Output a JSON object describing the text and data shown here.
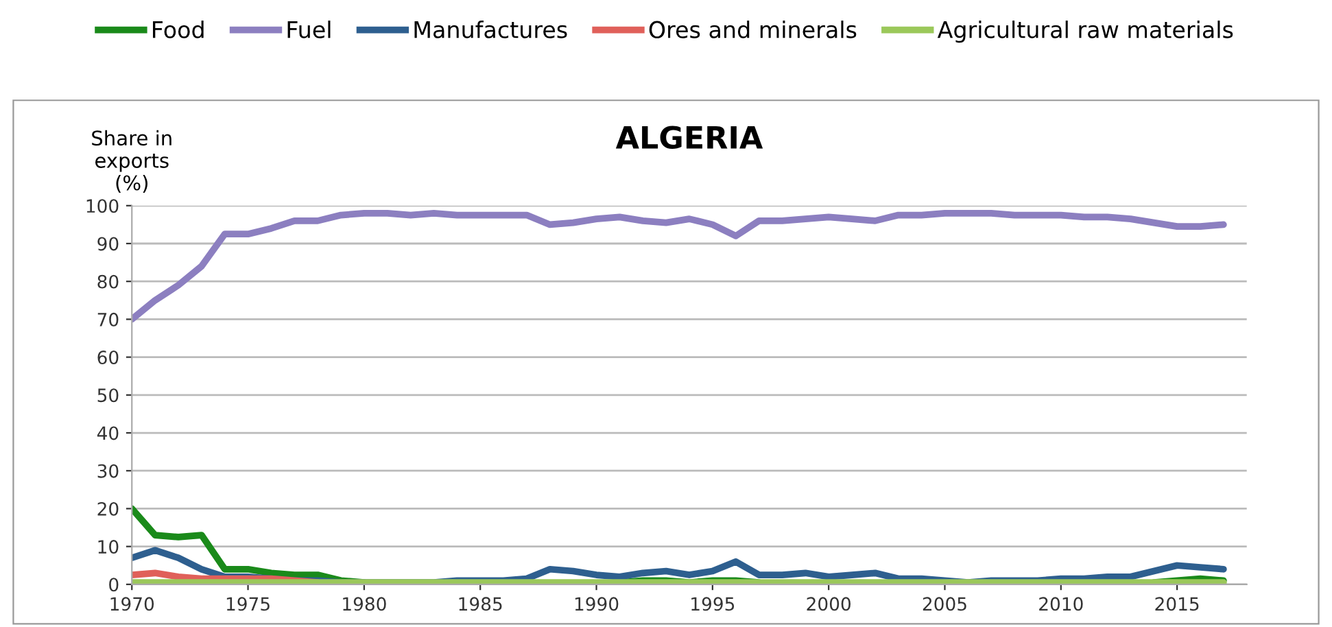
{
  "chart_data": {
    "type": "line",
    "title": "ALGERIA",
    "ylabel": "Share in\nexports\n(%)",
    "x": [
      1970,
      1971,
      1972,
      1973,
      1974,
      1975,
      1976,
      1977,
      1978,
      1979,
      1980,
      1981,
      1982,
      1983,
      1984,
      1985,
      1986,
      1987,
      1988,
      1989,
      1990,
      1991,
      1992,
      1993,
      1994,
      1995,
      1996,
      1997,
      1998,
      1999,
      2000,
      2001,
      2002,
      2003,
      2004,
      2005,
      2006,
      2007,
      2008,
      2009,
      2010,
      2011,
      2012,
      2013,
      2014,
      2015,
      2016,
      2017
    ],
    "series": [
      {
        "name": "Food",
        "color": "#1a8a1a",
        "values": [
          20,
          13,
          12.5,
          13,
          4,
          4,
          3,
          2.5,
          2.5,
          1,
          0.5,
          null,
          null,
          null,
          null,
          null,
          null,
          null,
          null,
          null,
          null,
          0.5,
          1,
          1,
          0.5,
          1,
          1,
          0.5,
          null,
          null,
          null,
          null,
          null,
          null,
          null,
          null,
          null,
          null,
          null,
          null,
          null,
          null,
          null,
          null,
          0.5,
          1,
          1.5,
          1
        ]
      },
      {
        "name": "Fuel",
        "color": "#8c7fc0",
        "values": [
          70,
          75,
          79,
          84,
          92.5,
          92.5,
          94,
          96,
          96,
          97.5,
          98,
          98,
          97.5,
          98,
          97.5,
          97.5,
          97.5,
          97.5,
          95,
          95.5,
          96.5,
          97,
          96,
          95.5,
          96.5,
          95,
          92,
          96,
          96,
          96.5,
          97,
          96.5,
          96,
          97.5,
          97.5,
          98,
          98,
          98,
          97.5,
          97.5,
          97.5,
          97,
          97,
          96.5,
          95.5,
          94.5,
          94.5,
          95
        ]
      },
      {
        "name": "Manufactures",
        "color": "#2e5f8f",
        "values": [
          7,
          9,
          7,
          4,
          2,
          2,
          1.5,
          1,
          1,
          0.5,
          0.5,
          0.5,
          0.5,
          0.5,
          1,
          1,
          1,
          1.5,
          4,
          3.5,
          2.5,
          2,
          3,
          3.5,
          2.5,
          3.5,
          6,
          2.5,
          2.5,
          3,
          2,
          2.5,
          3,
          1.5,
          1.5,
          1,
          0.5,
          1,
          1,
          1,
          1.5,
          1.5,
          2,
          2,
          3.5,
          5,
          4.5,
          4
        ]
      },
      {
        "name": "Ores and minerals",
        "color": "#e0605a",
        "values": [
          2.5,
          3,
          2,
          1.5,
          1.5,
          1.5,
          1.5,
          1,
          0.5,
          null,
          null,
          null,
          null,
          null,
          null,
          null,
          null,
          null,
          null,
          null,
          null,
          null,
          null,
          null,
          null,
          null,
          null,
          null,
          null,
          null,
          null,
          null,
          null,
          null,
          null,
          null,
          null,
          null,
          null,
          null,
          null,
          null,
          null,
          null,
          null,
          null,
          null,
          null
        ]
      },
      {
        "name": "Agricultural raw materials",
        "color": "#9bc85a",
        "values": [
          0.5,
          0.5,
          0.5,
          0.5,
          0.5,
          0.5,
          0.5,
          0.5,
          0.5,
          0.5,
          0.5,
          0.5,
          0.5,
          0.5,
          0.5,
          0.5,
          0.5,
          0.5,
          0.5,
          0.5,
          0.5,
          0.5,
          0.5,
          0.5,
          0.5,
          0.5,
          0.5,
          0.5,
          0.5,
          0.5,
          0.5,
          0.5,
          0.5,
          0.5,
          0.5,
          0.5,
          0.5,
          0.5,
          0.5,
          0.5,
          0.5,
          0.5,
          0.5,
          0.5,
          0.5,
          0.5,
          0.5,
          0.5
        ]
      }
    ],
    "xlim": [
      1970,
      2018
    ],
    "xticks": [
      1970,
      1975,
      1980,
      1985,
      1990,
      1995,
      2000,
      2005,
      2010,
      2015
    ],
    "ylim": [
      0,
      100
    ],
    "yticks": [
      0,
      10,
      20,
      30,
      40,
      50,
      60,
      70,
      80,
      90,
      100
    ],
    "grid": "y",
    "legend": "top",
    "marker": "none",
    "line_style": "solid"
  }
}
